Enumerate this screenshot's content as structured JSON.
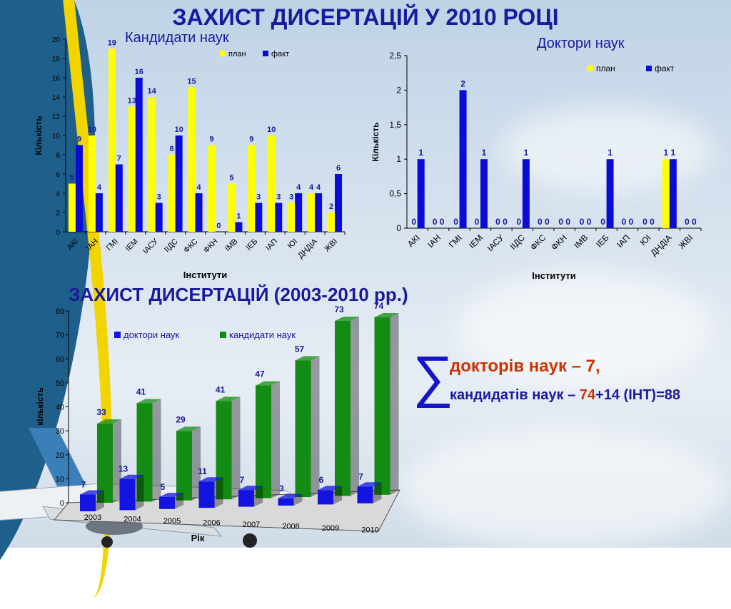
{
  "page_title": "ЗАХИСТ ДИСЕРТАЦІЙ У 2010 РОЦІ",
  "section_title": "ЗАХИСТ ДИСЕРТАЦІЙ (2003-2010 рр.)",
  "summary": {
    "sigma": "∑",
    "line1": "докторів наук – 7,",
    "line2_prefix": "кандидатів наук – ",
    "line2_value": "74",
    "line2_suffix": "+14 (ІНТ)=88"
  },
  "colors": {
    "plan": "#ffff00",
    "fact": "#0b0bd8",
    "doctors": "#1414e0",
    "candidates": "#128c12",
    "title": "#1a1a9c"
  },
  "chart_data": [
    {
      "type": "bar",
      "title": "Кандидати наук",
      "xlabel": "Інститути",
      "ylabel": "Кількість",
      "ylim": [
        0,
        20
      ],
      "yticks": [
        "0",
        "2",
        "4",
        "6",
        "8",
        "10",
        "12",
        "14",
        "16",
        "18",
        "20"
      ],
      "categories": [
        "АКІ",
        "ІАН",
        "ГМІ",
        "ІЕМ",
        "ІАСУ",
        "ІІДС",
        "ФКС",
        "ФКН",
        "ІМВ",
        "ІЕБ",
        "ІАП",
        "ЮІ",
        "ДНДІА",
        "ЖВІ"
      ],
      "series": [
        {
          "name": "план",
          "values": [
            5,
            10,
            19,
            13,
            14,
            8,
            15,
            9,
            5,
            9,
            10,
            3,
            4,
            2
          ]
        },
        {
          "name": "факт",
          "values": [
            9,
            4,
            7,
            16,
            3,
            10,
            4,
            0,
            1,
            3,
            3,
            4,
            4,
            6
          ]
        }
      ],
      "legend": "top-right",
      "grid": false
    },
    {
      "type": "bar",
      "title": "Доктори наук",
      "xlabel": "Інститути",
      "ylabel": "Кількість",
      "ylim": [
        0,
        2.5
      ],
      "yticks": [
        "0",
        "0,5",
        "1",
        "1,5",
        "2",
        "2,5"
      ],
      "categories": [
        "АКІ",
        "ІАН",
        "ГМІ",
        "ІЕМ",
        "ІАСУ",
        "ІІДС",
        "ФКС",
        "ФКН",
        "ІМВ",
        "ІЕБ",
        "ІАП",
        "ЮІ",
        "ДНДІА",
        "ЖВІ"
      ],
      "series": [
        {
          "name": "план",
          "values": [
            0,
            0,
            0,
            0,
            0,
            0,
            0,
            0,
            0,
            0,
            0,
            0,
            1,
            0
          ]
        },
        {
          "name": "факт",
          "values": [
            1,
            0,
            2,
            1,
            0,
            1,
            0,
            0,
            0,
            1,
            0,
            0,
            1,
            0
          ]
        }
      ],
      "legend": "top-right",
      "grid": false
    },
    {
      "type": "bar",
      "title": "",
      "xlabel": "Рік",
      "ylabel": "кількість",
      "ylim": [
        0,
        80
      ],
      "yticks": [
        "0",
        "10",
        "20",
        "30",
        "40",
        "50",
        "60",
        "70",
        "80"
      ],
      "categories": [
        "2003",
        "2004",
        "2005",
        "2006",
        "2007",
        "2008",
        "2009",
        "2010"
      ],
      "series": [
        {
          "name": "доктори наук",
          "values": [
            7,
            13,
            5,
            11,
            7,
            3,
            6,
            7
          ]
        },
        {
          "name": "кандидати наук",
          "values": [
            33,
            41,
            29,
            41,
            47,
            57,
            73,
            74
          ]
        }
      ],
      "legend": "top-left",
      "grid": false
    }
  ]
}
